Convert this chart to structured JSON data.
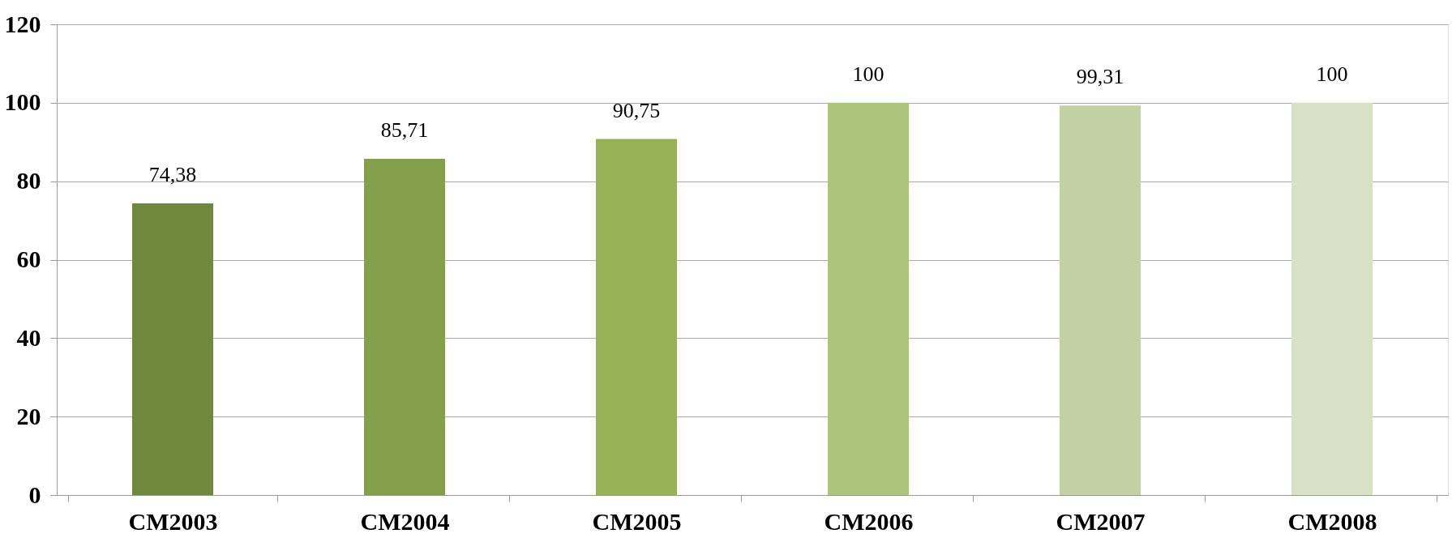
{
  "chart_data": {
    "type": "bar",
    "categories": [
      "CM2003",
      "CM2004",
      "CM2005",
      "CM2006",
      "CM2007",
      "CM2008"
    ],
    "values": [
      74.38,
      85.71,
      90.75,
      100,
      99.31,
      100
    ],
    "colors": [
      "#70883c",
      "#84a04a",
      "#96b256",
      "#abc67c",
      "#c2d1a3",
      "#d7e1c4"
    ],
    "value_labels": [
      "74,38",
      "85,71",
      "90,75",
      "100",
      "99,31",
      "100"
    ],
    "ylim": [
      0,
      120
    ],
    "yticks": [
      0,
      20,
      40,
      60,
      80,
      100,
      120
    ],
    "grid": "y"
  }
}
